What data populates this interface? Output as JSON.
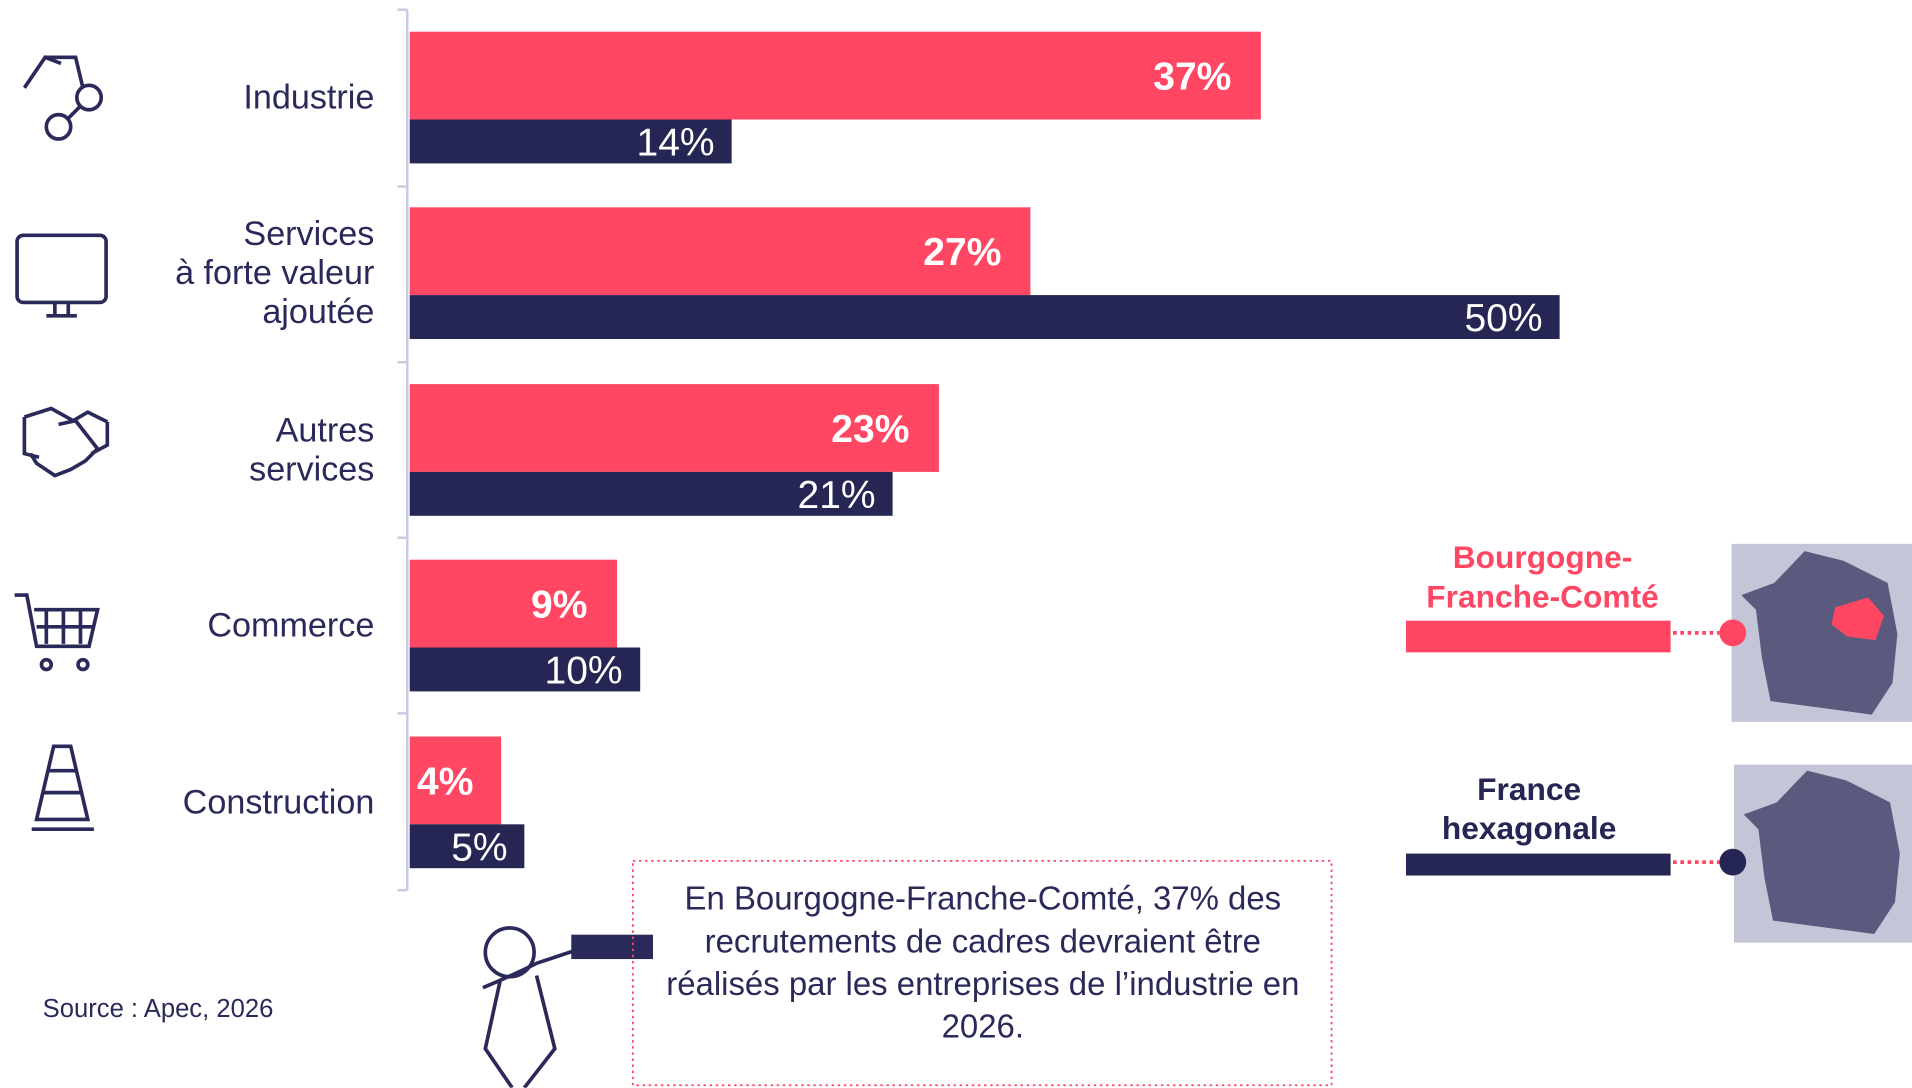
{
  "chart_data": {
    "type": "bar",
    "orientation": "horizontal",
    "categories": [
      "Industrie",
      "Services\nà forte valeur\najoutée",
      "Autres\nservices",
      "Commerce",
      "Construction"
    ],
    "series": [
      {
        "name": "Bourgogne-Franche-Comté",
        "color": "#ff4764",
        "values": [
          37,
          27,
          23,
          9,
          4
        ],
        "value_labels": [
          "37%",
          "27%",
          "23%",
          "9%",
          "4%"
        ]
      },
      {
        "name": "France hexagonale",
        "color": "#252653",
        "values": [
          14,
          50,
          21,
          10,
          5
        ],
        "value_labels": [
          "14%",
          "50%",
          "21%",
          "10%",
          "5%"
        ]
      }
    ],
    "annotation": "En Bourgogne-Franche-Comté, 37% des recrutements de cadres devraient être réalisés par les entreprises de l’industrie en 2026.",
    "source": "Source : Apec, 2026"
  }
}
